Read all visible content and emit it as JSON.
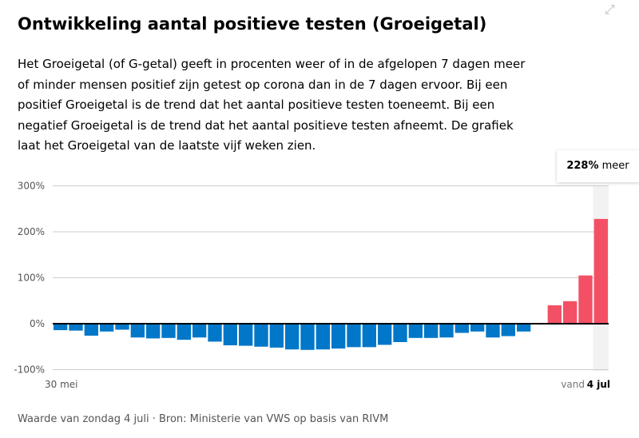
{
  "title": "Ontwikkeling aantal positieve testen (Groeigetal)",
  "description": "Het Groeigetal (of G-getal) geeft in procenten weer of in de afgelopen 7 dagen meer of minder mensen positief zijn getest op corona dan in de 7 dagen ervoor. Bij een positief Groeigetal is de trend dat het aantal positieve testen toeneemt. Bij een negatief Groeigetal is de trend dat het aantal positieve testen afneemt. De grafiek laat het Groeigetal van de laatste vijf weken zien.",
  "source": "Waarde van zondag 4 juli · Bron: Ministerie van VWS op basis van RIVM",
  "tooltip": {
    "value": "228%",
    "suffix": " meer"
  },
  "icons": {
    "expand": "expand-icon"
  },
  "colors": {
    "negative": "#0077c8",
    "positive": "#f35065"
  },
  "chart_data": {
    "type": "bar",
    "ylim": [
      -100,
      300
    ],
    "yticks": [
      "-100%",
      "0%",
      "100%",
      "200%",
      "300%"
    ],
    "ytick_values": [
      -100,
      0,
      100,
      200,
      300
    ],
    "x_start_label": "30 mei",
    "x_end_prefix": "vand",
    "x_end_label": "4 jul",
    "grid": true,
    "values": [
      -14,
      -15,
      -26,
      -17,
      -13,
      -30,
      -32,
      -31,
      -35,
      -30,
      -39,
      -47,
      -48,
      -50,
      -52,
      -56,
      -57,
      -56,
      -54,
      -51,
      -51,
      -46,
      -40,
      -31,
      -31,
      -30,
      -20,
      -17,
      -30,
      -27,
      -17,
      0,
      40,
      49,
      105,
      228
    ]
  }
}
